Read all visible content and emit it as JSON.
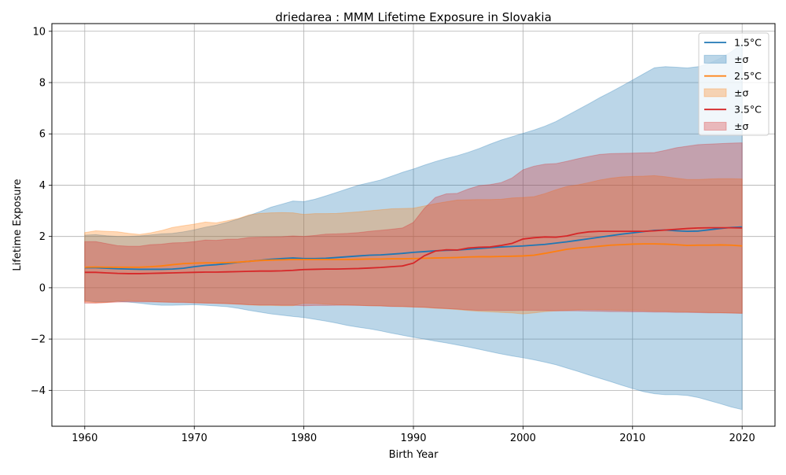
{
  "chart_data": {
    "type": "area",
    "title": "driedarea : MMM Lifetime Exposure in Slovakia",
    "xlabel": "Birth Year",
    "ylabel": "Lifetime Exposure",
    "xlim": [
      1957,
      2023
    ],
    "ylim": [
      -5.4,
      10.3
    ],
    "xticks": [
      1960,
      1970,
      1980,
      1990,
      2000,
      2010,
      2020
    ],
    "yticks": [
      -4,
      -2,
      0,
      2,
      4,
      6,
      8,
      10
    ],
    "grid": true,
    "legend_position": "top-right",
    "x": [
      1960,
      1961,
      1962,
      1963,
      1964,
      1965,
      1966,
      1967,
      1968,
      1969,
      1970,
      1971,
      1972,
      1973,
      1974,
      1975,
      1976,
      1977,
      1978,
      1979,
      1980,
      1981,
      1982,
      1983,
      1984,
      1985,
      1986,
      1987,
      1988,
      1989,
      1990,
      1991,
      1992,
      1993,
      1994,
      1995,
      1996,
      1997,
      1998,
      1999,
      2000,
      2001,
      2002,
      2003,
      2004,
      2005,
      2006,
      2007,
      2008,
      2009,
      2010,
      2011,
      2012,
      2013,
      2014,
      2015,
      2016,
      2017,
      2018,
      2019,
      2020
    ],
    "series": [
      {
        "name": "1.5°C",
        "band_label": "±σ",
        "color": "#1f77b4",
        "mean": [
          0.78,
          0.78,
          0.76,
          0.74,
          0.73,
          0.72,
          0.72,
          0.72,
          0.73,
          0.76,
          0.82,
          0.87,
          0.9,
          0.94,
          0.99,
          1.03,
          1.07,
          1.11,
          1.14,
          1.16,
          1.14,
          1.14,
          1.15,
          1.18,
          1.21,
          1.24,
          1.27,
          1.28,
          1.31,
          1.34,
          1.38,
          1.41,
          1.44,
          1.46,
          1.47,
          1.5,
          1.53,
          1.56,
          1.59,
          1.61,
          1.63,
          1.66,
          1.69,
          1.74,
          1.79,
          1.85,
          1.91,
          1.97,
          2.03,
          2.09,
          2.14,
          2.19,
          2.24,
          2.25,
          2.22,
          2.2,
          2.21,
          2.26,
          2.31,
          2.35,
          2.37
        ],
        "upper": [
          2.05,
          2.07,
          2.03,
          2.0,
          2.0,
          2.02,
          2.06,
          2.1,
          2.12,
          2.18,
          2.26,
          2.36,
          2.44,
          2.55,
          2.68,
          2.82,
          2.97,
          3.14,
          3.26,
          3.38,
          3.36,
          3.45,
          3.58,
          3.72,
          3.86,
          4.0,
          4.1,
          4.2,
          4.35,
          4.5,
          4.63,
          4.78,
          4.92,
          5.04,
          5.15,
          5.28,
          5.43,
          5.6,
          5.76,
          5.89,
          6.02,
          6.15,
          6.3,
          6.48,
          6.71,
          6.94,
          7.17,
          7.41,
          7.63,
          7.86,
          8.1,
          8.34,
          8.58,
          8.62,
          8.6,
          8.57,
          8.62,
          8.75,
          8.95,
          9.2,
          9.5
        ],
        "lower": [
          -0.5,
          -0.55,
          -0.55,
          -0.53,
          -0.56,
          -0.6,
          -0.65,
          -0.68,
          -0.68,
          -0.67,
          -0.66,
          -0.68,
          -0.71,
          -0.74,
          -0.8,
          -0.88,
          -0.95,
          -1.02,
          -1.07,
          -1.12,
          -1.16,
          -1.23,
          -1.3,
          -1.38,
          -1.47,
          -1.54,
          -1.6,
          -1.68,
          -1.77,
          -1.85,
          -1.93,
          -2.0,
          -2.08,
          -2.15,
          -2.23,
          -2.31,
          -2.4,
          -2.49,
          -2.58,
          -2.66,
          -2.73,
          -2.81,
          -2.9,
          -3.0,
          -3.13,
          -3.26,
          -3.4,
          -3.53,
          -3.66,
          -3.8,
          -3.93,
          -4.05,
          -4.13,
          -4.17,
          -4.17,
          -4.2,
          -4.28,
          -4.4,
          -4.52,
          -4.65,
          -4.75
        ]
      },
      {
        "name": "2.5°C",
        "band_label": "±σ",
        "color": "#ff7f0e",
        "mean": [
          0.8,
          0.81,
          0.8,
          0.8,
          0.8,
          0.8,
          0.82,
          0.85,
          0.9,
          0.94,
          0.96,
          0.97,
          0.97,
          0.98,
          1.0,
          1.03,
          1.06,
          1.08,
          1.09,
          1.1,
          1.1,
          1.1,
          1.1,
          1.1,
          1.1,
          1.11,
          1.12,
          1.12,
          1.13,
          1.13,
          1.14,
          1.15,
          1.16,
          1.17,
          1.18,
          1.2,
          1.21,
          1.21,
          1.22,
          1.23,
          1.24,
          1.27,
          1.34,
          1.42,
          1.5,
          1.55,
          1.58,
          1.62,
          1.66,
          1.68,
          1.7,
          1.71,
          1.71,
          1.7,
          1.68,
          1.65,
          1.66,
          1.66,
          1.67,
          1.66,
          1.63
        ],
        "upper": [
          2.15,
          2.22,
          2.2,
          2.18,
          2.12,
          2.08,
          2.14,
          2.23,
          2.35,
          2.42,
          2.48,
          2.56,
          2.53,
          2.61,
          2.7,
          2.84,
          2.9,
          2.92,
          2.93,
          2.92,
          2.86,
          2.89,
          2.89,
          2.9,
          2.93,
          2.96,
          3.0,
          3.04,
          3.08,
          3.09,
          3.1,
          3.19,
          3.28,
          3.35,
          3.42,
          3.43,
          3.44,
          3.44,
          3.45,
          3.5,
          3.52,
          3.55,
          3.67,
          3.82,
          3.95,
          4.01,
          4.1,
          4.2,
          4.27,
          4.32,
          4.34,
          4.35,
          4.37,
          4.33,
          4.27,
          4.22,
          4.22,
          4.24,
          4.25,
          4.25,
          4.24
        ],
        "lower": [
          -0.55,
          -0.58,
          -0.57,
          -0.52,
          -0.5,
          -0.52,
          -0.53,
          -0.55,
          -0.56,
          -0.56,
          -0.58,
          -0.59,
          -0.6,
          -0.62,
          -0.64,
          -0.67,
          -0.69,
          -0.69,
          -0.7,
          -0.7,
          -0.6,
          -0.61,
          -0.64,
          -0.66,
          -0.67,
          -0.68,
          -0.7,
          -0.71,
          -0.72,
          -0.74,
          -0.75,
          -0.77,
          -0.8,
          -0.82,
          -0.85,
          -0.89,
          -0.92,
          -0.94,
          -0.96,
          -0.98,
          -1.02,
          -0.98,
          -0.93,
          -0.9,
          -0.88,
          -0.86,
          -0.85,
          -0.86,
          -0.87,
          -0.88,
          -0.89,
          -0.9,
          -0.91,
          -0.92,
          -0.93,
          -0.94,
          -0.95,
          -0.96,
          -0.97,
          -0.98,
          -0.99
        ]
      },
      {
        "name": "3.5°C",
        "band_label": "±σ",
        "color": "#d62728",
        "mean": [
          0.6,
          0.6,
          0.58,
          0.56,
          0.55,
          0.55,
          0.56,
          0.57,
          0.58,
          0.59,
          0.6,
          0.61,
          0.61,
          0.62,
          0.63,
          0.64,
          0.65,
          0.65,
          0.66,
          0.68,
          0.71,
          0.72,
          0.73,
          0.73,
          0.74,
          0.75,
          0.77,
          0.79,
          0.82,
          0.85,
          0.96,
          1.25,
          1.43,
          1.48,
          1.47,
          1.55,
          1.58,
          1.59,
          1.65,
          1.73,
          1.9,
          1.95,
          1.98,
          1.97,
          2.02,
          2.12,
          2.18,
          2.2,
          2.2,
          2.2,
          2.2,
          2.2,
          2.22,
          2.25,
          2.28,
          2.31,
          2.33,
          2.34,
          2.34,
          2.34,
          2.33
        ],
        "upper": [
          1.8,
          1.8,
          1.72,
          1.64,
          1.62,
          1.62,
          1.68,
          1.7,
          1.75,
          1.76,
          1.8,
          1.86,
          1.85,
          1.89,
          1.9,
          1.96,
          1.97,
          1.98,
          1.99,
          2.02,
          2.0,
          2.04,
          2.09,
          2.1,
          2.12,
          2.15,
          2.2,
          2.24,
          2.28,
          2.33,
          2.55,
          3.1,
          3.52,
          3.66,
          3.68,
          3.85,
          3.98,
          4.02,
          4.1,
          4.28,
          4.6,
          4.74,
          4.82,
          4.84,
          4.93,
          5.03,
          5.12,
          5.2,
          5.23,
          5.24,
          5.25,
          5.26,
          5.27,
          5.36,
          5.46,
          5.52,
          5.58,
          5.6,
          5.62,
          5.64,
          5.65
        ],
        "lower": [
          -0.6,
          -0.6,
          -0.58,
          -0.56,
          -0.55,
          -0.55,
          -0.55,
          -0.56,
          -0.57,
          -0.58,
          -0.59,
          -0.6,
          -0.61,
          -0.62,
          -0.64,
          -0.66,
          -0.67,
          -0.67,
          -0.68,
          -0.68,
          -0.7,
          -0.69,
          -0.69,
          -0.68,
          -0.68,
          -0.69,
          -0.7,
          -0.71,
          -0.73,
          -0.73,
          -0.75,
          -0.76,
          -0.79,
          -0.81,
          -0.83,
          -0.86,
          -0.88,
          -0.88,
          -0.89,
          -0.89,
          -0.88,
          -0.88,
          -0.89,
          -0.9,
          -0.9,
          -0.9,
          -0.91,
          -0.92,
          -0.93,
          -0.93,
          -0.94,
          -0.94,
          -0.95,
          -0.95,
          -0.96,
          -0.96,
          -0.97,
          -0.98,
          -0.98,
          -0.99,
          -1.0
        ]
      }
    ]
  }
}
